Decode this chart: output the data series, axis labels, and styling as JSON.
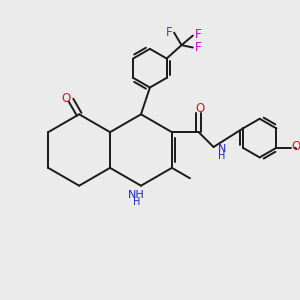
{
  "background_color": "#ebebeb",
  "bond_color": "#1a1a1a",
  "bond_width": 1.4,
  "N_color": "#2020cc",
  "O_color": "#cc2020",
  "F_color": "#cc00bb",
  "figsize": [
    3.0,
    3.0
  ],
  "dpi": 100,
  "xlim": [
    0,
    10
  ],
  "ylim": [
    0,
    10
  ]
}
